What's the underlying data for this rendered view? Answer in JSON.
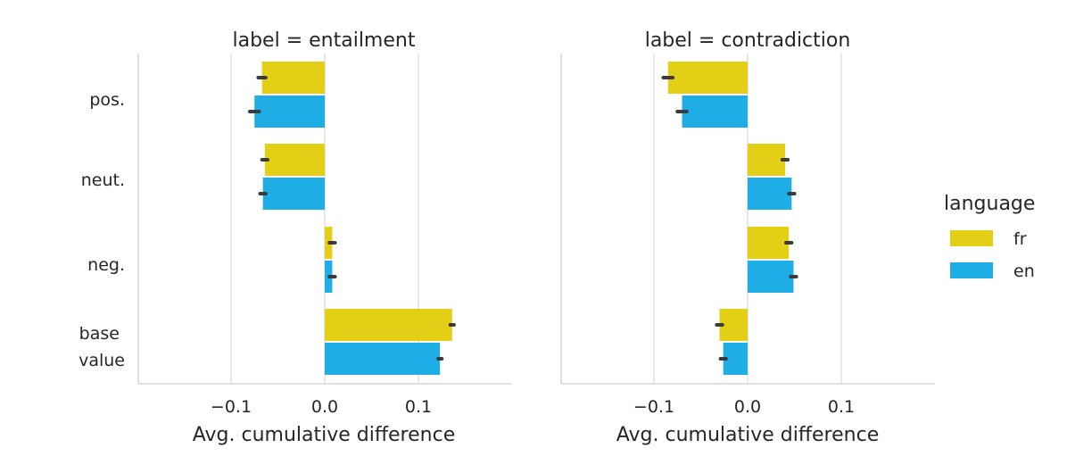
{
  "chart_data": {
    "type": "bar",
    "orientation": "horizontal",
    "categories": [
      "pos.",
      "neut.",
      "neg.",
      "base value"
    ],
    "xlabel": "Avg. cumulative difference",
    "xlim": [
      -0.19,
      0.2
    ],
    "xticks": [
      -0.1,
      0.0,
      0.1
    ],
    "xtick_labels": [
      "−0.1",
      "0.0",
      "0.1"
    ],
    "grid": "vertical",
    "colors": {
      "fr": "#e3cf16",
      "en": "#1eaee5",
      "error": "#3b3b3b",
      "grid": "#d9d9d9",
      "axis": "#cfcfcf"
    },
    "legend": {
      "title": "language",
      "position": "right",
      "entries": [
        {
          "key": "fr",
          "label": "fr"
        },
        {
          "key": "en",
          "label": "en"
        }
      ]
    },
    "panels": [
      {
        "title": "label = entailment",
        "series": [
          {
            "name": "fr",
            "values": [
              -0.067,
              -0.064,
              0.008,
              0.136
            ],
            "errors": [
              0.004,
              0.003,
              0.003,
              0.002
            ]
          },
          {
            "name": "en",
            "values": [
              -0.075,
              -0.066,
              0.008,
              0.123
            ],
            "errors": [
              0.005,
              0.003,
              0.003,
              0.002
            ]
          }
        ]
      },
      {
        "title": "label = contradiction",
        "series": [
          {
            "name": "fr",
            "values": [
              -0.085,
              0.04,
              0.044,
              -0.03
            ],
            "errors": [
              0.005,
              0.003,
              0.003,
              0.003
            ]
          },
          {
            "name": "en",
            "values": [
              -0.07,
              0.047,
              0.049,
              -0.026
            ],
            "errors": [
              0.005,
              0.003,
              0.003,
              0.003
            ]
          }
        ]
      }
    ]
  }
}
